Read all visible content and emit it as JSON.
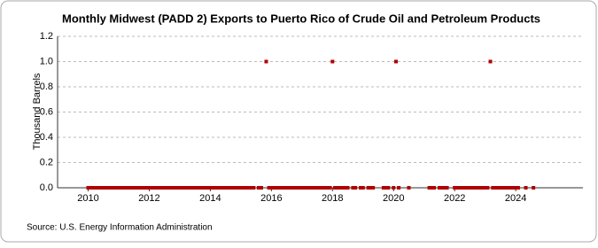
{
  "chart_data": {
    "type": "scatter",
    "title": "Monthly Midwest (PADD 2) Exports to Puerto Rico of Crude Oil and Petroleum Products",
    "y_label": "Thousand Barrels",
    "source": "Source: U.S. Energy Information Administration",
    "xlim": [
      2009,
      2026.2
    ],
    "xticks": [
      2010,
      2012,
      2014,
      2016,
      2018,
      2020,
      2022,
      2024
    ],
    "ylim": [
      0,
      1.2
    ],
    "yticks": [
      {
        "value": 0,
        "label": "0.0"
      },
      0.2,
      0.4,
      0.6,
      0.8,
      {
        "value": 1,
        "label": "1.0"
      },
      1.2
    ],
    "grid": true,
    "series": [
      {
        "color": "#b00000",
        "x": [
          2010,
          2010.08,
          2010.17,
          2010.25,
          2010.33,
          2010.42,
          2010.5,
          2010.58,
          2010.67,
          2010.75,
          2010.83,
          2010.92,
          2011,
          2011.08,
          2011.17,
          2011.25,
          2011.33,
          2011.42,
          2011.5,
          2011.58,
          2011.67,
          2011.75,
          2011.83,
          2011.92,
          2012,
          2012.08,
          2012.17,
          2012.25,
          2012.33,
          2012.42,
          2012.5,
          2012.58,
          2012.67,
          2012.75,
          2012.83,
          2012.92,
          2013,
          2013.08,
          2013.17,
          2013.25,
          2013.33,
          2013.42,
          2013.5,
          2013.58,
          2013.67,
          2013.75,
          2013.83,
          2013.92,
          2014,
          2014.08,
          2014.17,
          2014.25,
          2014.33,
          2014.42,
          2014.5,
          2014.58,
          2014.67,
          2014.75,
          2014.83,
          2014.92,
          2015,
          2015.08,
          2015.17,
          2015.25,
          2015.33,
          2015.42,
          2015.5,
          2015.58,
          2015.67,
          2015.75,
          2015.83,
          2015.92,
          2016,
          2016.08,
          2016.17,
          2016.25,
          2016.33,
          2016.42,
          2016.5,
          2016.58,
          2016.67,
          2016.75,
          2016.83,
          2016.92,
          2017,
          2017.08,
          2017.17,
          2017.25,
          2017.33,
          2017.42,
          2017.5,
          2017.58,
          2017.67,
          2017.75,
          2017.83,
          2017.92,
          2018,
          2018.08,
          2018.17,
          2018.25,
          2018.33,
          2018.42,
          2018.5,
          2018.58,
          2018.67,
          2018.75,
          2018.83,
          2018.92,
          2019,
          2019.08,
          2019.17,
          2019.25,
          2019.33,
          2019.42,
          2019.5,
          2019.58,
          2019.67,
          2019.75,
          2019.83,
          2019.92,
          2020,
          2020.08,
          2020.17,
          2020.25,
          2020.33,
          2020.42,
          2020.5,
          2020.58,
          2020.67,
          2020.75,
          2020.83,
          2020.92,
          2021,
          2021.08,
          2021.17,
          2021.25,
          2021.33,
          2021.42,
          2021.5,
          2021.58,
          2021.67,
          2021.75,
          2021.83,
          2021.92,
          2022,
          2022.08,
          2022.17,
          2022.25,
          2022.33,
          2022.42,
          2022.5,
          2022.58,
          2022.67,
          2022.75,
          2022.83,
          2022.92,
          2023,
          2023.08,
          2023.17,
          2023.25,
          2023.33,
          2023.42,
          2023.5,
          2023.58,
          2023.67,
          2023.75,
          2023.83,
          2023.92,
          2024,
          2024.08,
          2024.17,
          2024.25,
          2024.33,
          2024.42,
          2024.5,
          2024.58
        ],
        "values": [
          0,
          0,
          0,
          0,
          0,
          0,
          0,
          0,
          0,
          0,
          0,
          0,
          0,
          0,
          0,
          0,
          0,
          0,
          0,
          0,
          0,
          0,
          0,
          0,
          0,
          0,
          0,
          0,
          0,
          0,
          0,
          0,
          0,
          0,
          0,
          0,
          0,
          0,
          0,
          0,
          0,
          0,
          0,
          0,
          0,
          0,
          0,
          0,
          0,
          0,
          0,
          0,
          0,
          0,
          0,
          0,
          0,
          0,
          0,
          0,
          0,
          0,
          0,
          0,
          0,
          0,
          null,
          0,
          0,
          null,
          1,
          0,
          0,
          0,
          0,
          0,
          0,
          0,
          0,
          0,
          0,
          0,
          0,
          0,
          0,
          0,
          0,
          0,
          0,
          0,
          0,
          0,
          0,
          0,
          0,
          0,
          1,
          0,
          0,
          0,
          0,
          0,
          0,
          null,
          0,
          0,
          null,
          0,
          0,
          null,
          0,
          0,
          0,
          null,
          null,
          null,
          0,
          0,
          0,
          null,
          0,
          1,
          0,
          null,
          null,
          null,
          0,
          null,
          null,
          null,
          null,
          null,
          null,
          null,
          0,
          0,
          0,
          null,
          0,
          0,
          0,
          0,
          null,
          null,
          0,
          0,
          0,
          0,
          0,
          0,
          0,
          0,
          0,
          0,
          0,
          0,
          0,
          0,
          1,
          0,
          0,
          0,
          0,
          0,
          0,
          0,
          0,
          0,
          0,
          0,
          null,
          null,
          0,
          null,
          null,
          0
        ]
      }
    ]
  }
}
